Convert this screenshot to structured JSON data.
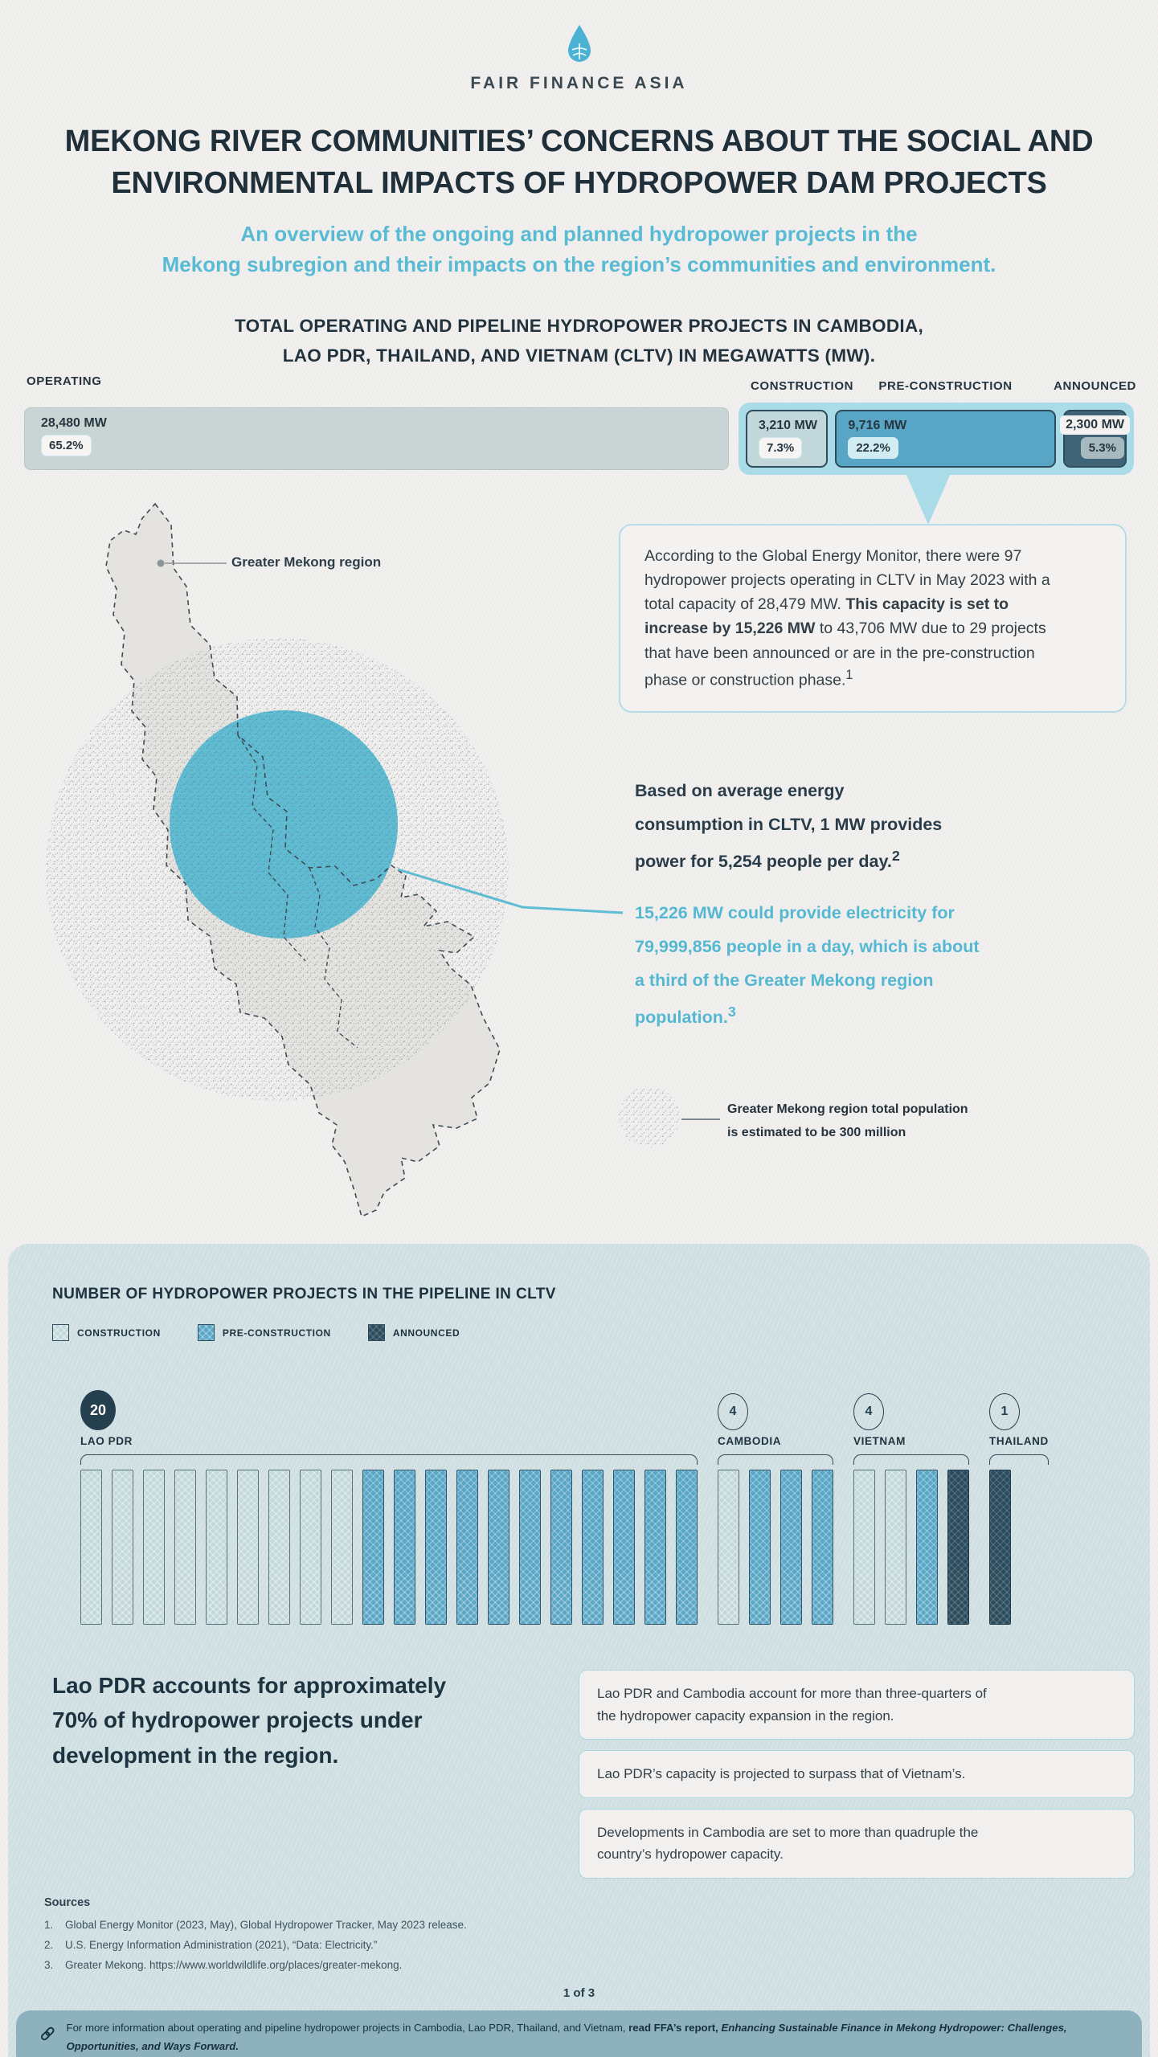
{
  "brand": {
    "name": "FAIR FINANCE ASIA"
  },
  "header": {
    "title_line1": "MEKONG RIVER COMMUNITIES’ CONCERNS ABOUT THE SOCIAL AND",
    "title_line2": "ENVIRONMENTAL IMPACTS OF HYDROPOWER DAM PROJECTS",
    "subtitle_line1": "An overview of the ongoing and planned hydropower projects in the",
    "subtitle_line2": "Mekong subregion and their impacts on the region’s communities and environment."
  },
  "capacity_chart": {
    "heading_line1": "TOTAL OPERATING AND PIPELINE HYDROPOWER PROJECTS IN CAMBODIA,",
    "heading_line2": "LAO PDR, THAILAND, AND VIETNAM (CLTV) IN MEGAWATTS (MW)."
  },
  "chart_data": [
    {
      "type": "bar",
      "title": "Total operating and pipeline hydropower projects in CLTV in megawatts (MW)",
      "categories": [
        "OPERATING",
        "CONSTRUCTION",
        "PRE-CONSTRUCTION",
        "ANNOUNCED"
      ],
      "values_mw": [
        28480,
        3210,
        9716,
        2300
      ],
      "values_pct": [
        65.2,
        7.3,
        22.2,
        5.3
      ],
      "segments": [
        {
          "label": "OPERATING",
          "mw": "28,480 MW",
          "pct": "65.2%"
        },
        {
          "label": "CONSTRUCTION",
          "mw": "3,210 MW",
          "pct": "7.3%"
        },
        {
          "label": "PRE-CONSTRUCTION",
          "mw": "9,716 MW",
          "pct": "22.2%"
        },
        {
          "label": "ANNOUNCED",
          "mw": "2,300 MW",
          "pct": "5.3%"
        }
      ]
    },
    {
      "type": "bar",
      "title": "NUMBER OF HYDROPOWER PROJECTS IN THE PIPELINE IN CLTV",
      "legend": [
        "CONSTRUCTION",
        "PRE-CONSTRUCTION",
        "ANNOUNCED"
      ],
      "groups": [
        {
          "country": "LAO PDR",
          "total": 20,
          "construction": 9,
          "pre_construction": 11,
          "announced": 0
        },
        {
          "country": "CAMBODIA",
          "total": 4,
          "construction": 1,
          "pre_construction": 3,
          "announced": 0
        },
        {
          "country": "VIETNAM",
          "total": 4,
          "construction": 2,
          "pre_construction": 1,
          "announced": 1
        },
        {
          "country": "THAILAND",
          "total": 1,
          "construction": 0,
          "pre_construction": 0,
          "announced": 1
        }
      ]
    }
  ],
  "callout": {
    "seg1": "According to the Global Energy Monitor, there were 97 hydropower projects operating in CLTV in May 2023 with a total capacity of 28,479 MW.",
    "seg2_bold": "This capacity is set to increase by 15,226 MW",
    "seg3": "to 43,706 MW due to 29 projects that have been announced or are in the pre-construction phase or construction phase.",
    "footnote_mark": "1"
  },
  "map": {
    "region_label": "Greater Mekong region",
    "population_note_line1": "Greater Mekong region total population",
    "population_note_line2": "is estimated to be 300 million"
  },
  "consumption": {
    "dark_text": "Based on average energy consumption in CLTV, 1 MW provides power for 5,254 people per day.",
    "dark_footnote": "2",
    "teal_text": "15,226 MW could provide electricity for 79,999,856 people in a day, which is about a third of the Greater Mekong region population.",
    "teal_footnote": "3"
  },
  "pipeline_section": {
    "heading": "NUMBER OF HYDROPOWER PROJECTS IN THE PIPELINE IN CLTV",
    "statement": "Lao PDR accounts for approximately 70% of hydropower projects under development in the region."
  },
  "insights": [
    {
      "text": "Lao PDR and Cambodia account for more than three-quarters of the hydropower capacity expansion in the region."
    },
    {
      "text": "Lao PDR’s capacity is projected to surpass that of Vietnam’s."
    },
    {
      "text": "Developments in Cambodia are set to more than quadruple the country’s hydropower capacity."
    }
  ],
  "sources": {
    "label": "Sources",
    "items": [
      {
        "n": "1.",
        "text": "Global Energy Monitor (2023, May), Global Hydropower Tracker, May 2023 release."
      },
      {
        "n": "2.",
        "text": "U.S. Energy Information Administration (2021), “Data: Electricity.”"
      },
      {
        "n": "3.",
        "text": "Greater Mekong. https://www.worldwildlife.org/places/greater-mekong."
      }
    ]
  },
  "page_indicator": "1 of 3",
  "footer": {
    "seg1": "For more information about operating and pipeline hydropower projects in Cambodia, Lao PDR, Thailand, and Vietnam,",
    "seg2_bold": "read FFA’s report,",
    "seg3_bold_italic": "Enhancing Sustainable Finance in Mekong Hydropower: Challenges, Opportunities, and Ways Forward."
  }
}
